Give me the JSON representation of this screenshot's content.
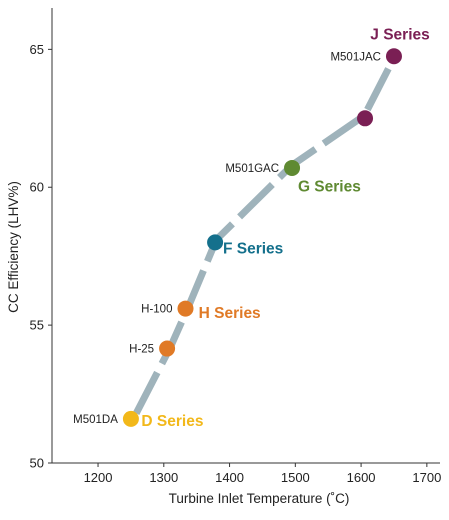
{
  "chart_data": {
    "type": "line",
    "xlabel": "Turbine Inlet Temperature (˚C)",
    "ylabel": "CC Efficiency (LHV%)",
    "xlim": [
      1130,
      1720
    ],
    "ylim": [
      50,
      66.5
    ],
    "xticks": [
      1200,
      1300,
      1400,
      1500,
      1600,
      1700
    ],
    "yticks": [
      50,
      55,
      60,
      65
    ],
    "grid": false,
    "trend": {
      "color": "#9fb3bb",
      "x": [
        1258,
        1310,
        1338,
        1380,
        1495,
        1605,
        1648
      ],
      "y": [
        51.8,
        54.2,
        55.7,
        58.1,
        60.8,
        62.6,
        64.6
      ]
    },
    "points": [
      {
        "x": 1250,
        "y": 51.6,
        "color": "#f2b81a",
        "label": "M501DA"
      },
      {
        "x": 1305,
        "y": 54.15,
        "color": "#e07a26",
        "label": "H-25"
      },
      {
        "x": 1333,
        "y": 55.6,
        "color": "#e07a26",
        "label": "H-100"
      },
      {
        "x": 1378,
        "y": 58.0,
        "color": "#14708c",
        "label": ""
      },
      {
        "x": 1495,
        "y": 60.7,
        "color": "#5f8a32",
        "label": "M501GAC"
      },
      {
        "x": 1606,
        "y": 62.5,
        "color": "#7a1f54",
        "label": ""
      },
      {
        "x": 1650,
        "y": 64.75,
        "color": "#7a1f54",
        "label": "M501JAC"
      }
    ],
    "series_labels": [
      {
        "name": "D Series",
        "color": "#f2b81a",
        "x": 1266,
        "y": 51.55
      },
      {
        "name": "H Series",
        "color": "#e07a26",
        "x": 1353,
        "y": 55.45
      },
      {
        "name": "F Series",
        "color": "#14708c",
        "x": 1390,
        "y": 57.8
      },
      {
        "name": "G Series",
        "color": "#5f8a32",
        "x": 1504,
        "y": 60.05
      },
      {
        "name": "J Series",
        "color": "#7a1f54",
        "x": 1614,
        "y": 65.55
      }
    ]
  }
}
